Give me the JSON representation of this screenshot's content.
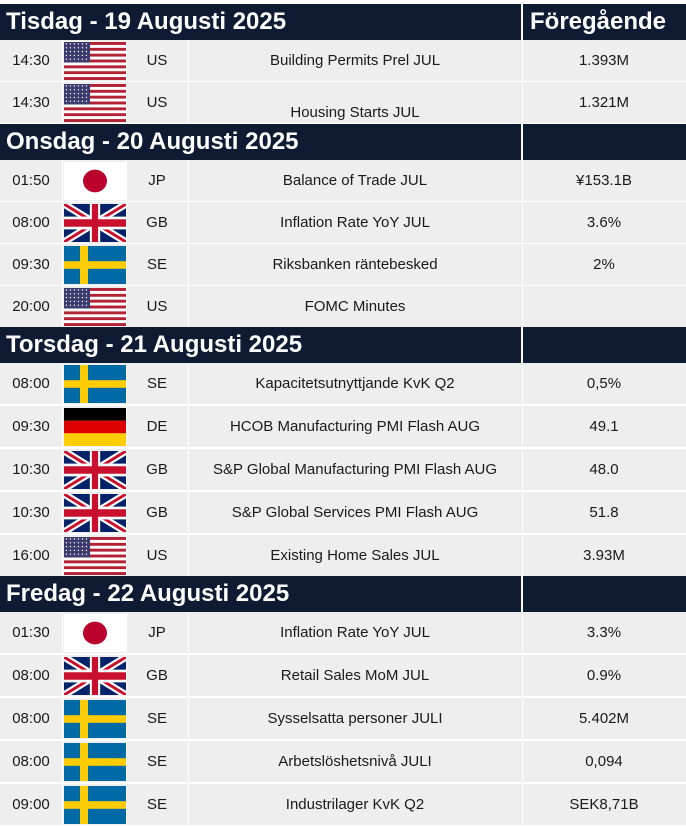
{
  "column_headers": {
    "previous": "Föregående"
  },
  "days": [
    {
      "title": "Tisdag - 19 Augusti 2025",
      "events": [
        {
          "time": "14:30",
          "flag_icon": "us-flag-icon",
          "country": "US",
          "event": "Building Permits Prel JUL",
          "previous": "1.393M"
        },
        {
          "time": "14:30",
          "flag_icon": "us-flag-icon",
          "country": "US",
          "event": "Housing Starts JUL",
          "previous": "1.321M"
        }
      ]
    },
    {
      "title": "Onsdag - 20 Augusti 2025",
      "events": [
        {
          "time": "01:50",
          "flag_icon": "jp-flag-icon",
          "country": "JP",
          "event": "Balance of Trade JUL",
          "previous": "¥153.1B"
        },
        {
          "time": "08:00",
          "flag_icon": "gb-flag-icon",
          "country": "GB",
          "event": "Inflation Rate YoY JUL",
          "previous": "3.6%"
        },
        {
          "time": "09:30",
          "flag_icon": "se-flag-icon",
          "country": "SE",
          "event": "Riksbanken räntebesked",
          "previous": "2%"
        },
        {
          "time": "20:00",
          "flag_icon": "us-flag-icon",
          "country": "US",
          "event": "FOMC Minutes",
          "previous": ""
        }
      ]
    },
    {
      "title": "Torsdag - 21 Augusti 2025",
      "events": [
        {
          "time": "08:00",
          "flag_icon": "se-flag-icon",
          "country": "SE",
          "event": "Kapacitetsutnyttjande KvK Q2",
          "previous": "0,5%"
        },
        {
          "time": "09:30",
          "flag_icon": "de-flag-icon",
          "country": "DE",
          "event": "HCOB Manufacturing PMI Flash AUG",
          "previous": "49.1"
        },
        {
          "time": "10:30",
          "flag_icon": "gb-flag-icon",
          "country": "GB",
          "event": "S&P Global Manufacturing PMI Flash AUG",
          "previous": "48.0"
        },
        {
          "time": "10:30",
          "flag_icon": "gb-flag-icon",
          "country": "GB",
          "event": "S&P Global Services PMI Flash AUG",
          "previous": "51.8"
        },
        {
          "time": "16:00",
          "flag_icon": "us-flag-icon",
          "country": "US",
          "event": "Existing Home Sales JUL",
          "previous": "3.93M"
        }
      ]
    },
    {
      "title": "Fredag - 22 Augusti 2025",
      "events": [
        {
          "time": "01:30",
          "flag_icon": "jp-flag-icon",
          "country": "JP",
          "event": "Inflation Rate YoY JUL",
          "previous": "3.3%"
        },
        {
          "time": "08:00",
          "flag_icon": "gb-flag-icon",
          "country": "GB",
          "event": "Retail Sales MoM JUL",
          "previous": "0.9%"
        },
        {
          "time": "08:00",
          "flag_icon": "se-flag-icon",
          "country": "SE",
          "event": "Sysselsatta personer JULI",
          "previous": "5.402M"
        },
        {
          "time": "08:00",
          "flag_icon": "se-flag-icon",
          "country": "SE",
          "event": "Arbetslöshetsnivå JULI",
          "previous": "0,094"
        },
        {
          "time": "09:00",
          "flag_icon": "se-flag-icon",
          "country": "SE",
          "event": "Industrilager KvK Q2",
          "previous": "SEK8,71B"
        }
      ]
    }
  ],
  "colors": {
    "header_bg": "#0e1b33",
    "row_bg": "#eeeeee",
    "us_red": "#b22234",
    "us_blue": "#3c3b6e",
    "gb_blue": "#012169",
    "gb_red": "#c8102e",
    "se_blue": "#006aa7",
    "se_yellow": "#fecc00",
    "jp_red": "#bc002d",
    "de_black": "#000000",
    "de_red": "#dd0000",
    "de_gold": "#ffce00"
  }
}
